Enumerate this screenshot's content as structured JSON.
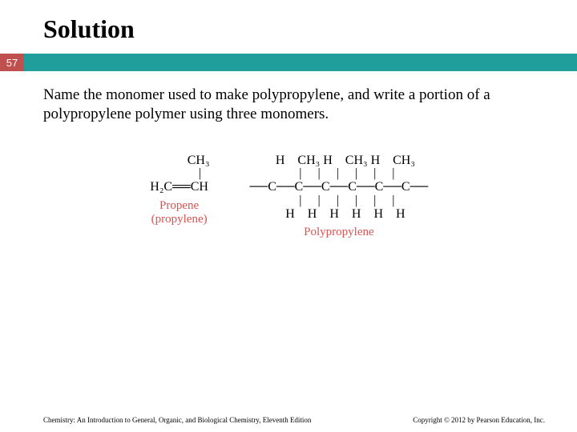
{
  "slide": {
    "title": "Solution",
    "page_number": "57",
    "body": "Name the monomer used to make polypropylene, and write a portion of a polypropylene polymer using three monomers.",
    "badge_bg": "#c0504d",
    "bar_bg": "#1f9e9c",
    "caption_color": "#d9534f"
  },
  "monomer": {
    "structure": "            CH₃\n             |\nH₂C══CH",
    "name_line1": "Propene",
    "name_line2": "(propylene)"
  },
  "polymer": {
    "structure": "    H    CH₃ H    CH₃ H    CH₃\n     |     |     |     |     |     |\n──C──C──C──C──C──C──\n     |     |     |     |     |     |\n    H    H    H    H    H    H",
    "name": "Polypropylene"
  },
  "footer": {
    "left": "Chemistry: An Introduction to General, Organic, and Biological Chemistry, Eleventh Edition",
    "right": "Copyright © 2012 by Pearson Education, Inc."
  }
}
